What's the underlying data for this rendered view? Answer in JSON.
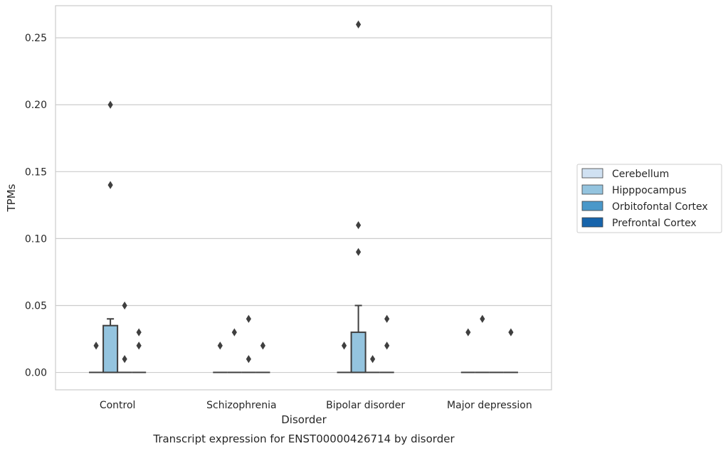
{
  "chart_data": {
    "type": "box",
    "title": "Transcript expression for ENST00000426714 by disorder",
    "xlabel": "Disorder",
    "ylabel": "TPMs",
    "ylim": [
      -0.013,
      0.274
    ],
    "yticks": [
      "0.00",
      "0.05",
      "0.10",
      "0.15",
      "0.20",
      "0.25"
    ],
    "ytick_values": [
      0,
      0.05,
      0.1,
      0.15,
      0.2,
      0.25
    ],
    "grid": true,
    "legend_position": "right",
    "categories": [
      "Control",
      "Schizophrenia",
      "Bipolar disorder",
      "Major depression"
    ],
    "series": [
      {
        "name": "Cerebellum",
        "color": "#d0e1f2"
      },
      {
        "name": "Hipppocampus",
        "color": "#94c4df"
      },
      {
        "name": "Orbitofontal Cortex",
        "color": "#4a98c9"
      },
      {
        "name": "Prefrontal Cortex",
        "color": "#1764ab"
      }
    ],
    "boxes": [
      {
        "category": 0,
        "series": 0,
        "q1": 0,
        "median": 0,
        "q3": 0,
        "whisker_low": 0,
        "whisker_high": 0,
        "outliers": [
          0.02
        ]
      },
      {
        "category": 0,
        "series": 1,
        "q1": 0,
        "median": 0,
        "q3": 0.035,
        "whisker_low": 0,
        "whisker_high": 0.04,
        "outliers": [
          0.2,
          0.14
        ]
      },
      {
        "category": 0,
        "series": 2,
        "q1": 0,
        "median": 0,
        "q3": 0,
        "whisker_low": 0,
        "whisker_high": 0,
        "outliers": [
          0.05,
          0.01
        ]
      },
      {
        "category": 0,
        "series": 3,
        "q1": 0,
        "median": 0,
        "q3": 0,
        "whisker_low": 0,
        "whisker_high": 0,
        "outliers": [
          0.03,
          0.02
        ]
      },
      {
        "category": 1,
        "series": 0,
        "q1": 0,
        "median": 0,
        "q3": 0,
        "whisker_low": 0,
        "whisker_high": 0,
        "outliers": [
          0.02
        ]
      },
      {
        "category": 1,
        "series": 1,
        "q1": 0,
        "median": 0,
        "q3": 0,
        "whisker_low": 0,
        "whisker_high": 0,
        "outliers": [
          0.03
        ]
      },
      {
        "category": 1,
        "series": 2,
        "q1": 0,
        "median": 0,
        "q3": 0,
        "whisker_low": 0,
        "whisker_high": 0,
        "outliers": [
          0.04,
          0.01
        ]
      },
      {
        "category": 1,
        "series": 3,
        "q1": 0,
        "median": 0,
        "q3": 0,
        "whisker_low": 0,
        "whisker_high": 0,
        "outliers": [
          0.02
        ]
      },
      {
        "category": 2,
        "series": 0,
        "q1": 0,
        "median": 0,
        "q3": 0,
        "whisker_low": 0,
        "whisker_high": 0,
        "outliers": [
          0.02
        ]
      },
      {
        "category": 2,
        "series": 1,
        "q1": 0,
        "median": 0,
        "q3": 0.03,
        "whisker_low": 0,
        "whisker_high": 0.05,
        "outliers": [
          0.26,
          0.11,
          0.09
        ]
      },
      {
        "category": 2,
        "series": 2,
        "q1": 0,
        "median": 0,
        "q3": 0,
        "whisker_low": 0,
        "whisker_high": 0,
        "outliers": [
          0.01
        ]
      },
      {
        "category": 2,
        "series": 3,
        "q1": 0,
        "median": 0,
        "q3": 0,
        "whisker_low": 0,
        "whisker_high": 0,
        "outliers": [
          0.04,
          0.02
        ]
      },
      {
        "category": 3,
        "series": 0,
        "q1": 0,
        "median": 0,
        "q3": 0,
        "whisker_low": 0,
        "whisker_high": 0,
        "outliers": [
          0.03
        ]
      },
      {
        "category": 3,
        "series": 1,
        "q1": 0,
        "median": 0,
        "q3": 0,
        "whisker_low": 0,
        "whisker_high": 0,
        "outliers": [
          0.04
        ]
      },
      {
        "category": 3,
        "series": 2,
        "q1": 0,
        "median": 0,
        "q3": 0,
        "whisker_low": 0,
        "whisker_high": 0,
        "outliers": []
      },
      {
        "category": 3,
        "series": 3,
        "q1": 0,
        "median": 0,
        "q3": 0,
        "whisker_low": 0,
        "whisker_high": 0,
        "outliers": [
          0.03
        ]
      }
    ],
    "style": {
      "grid_color": "#cccccc",
      "frame_color": "#cccccc",
      "box_edge_color": "#3f3f3f",
      "text_color": "#262626"
    }
  }
}
